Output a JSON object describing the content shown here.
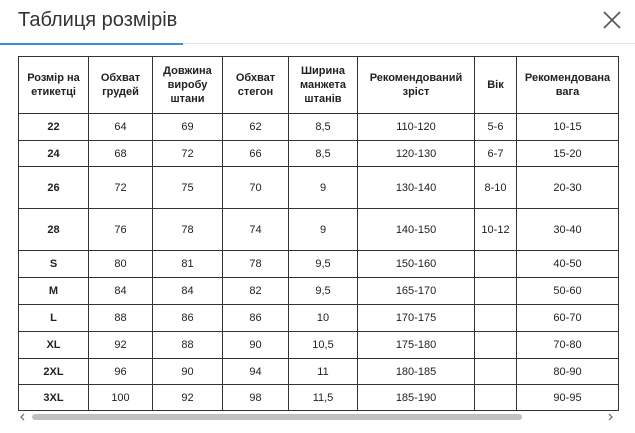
{
  "header": {
    "title": "Таблиця розмірів",
    "close": "×"
  },
  "table": {
    "headers": [
      "Розмір на етикетці",
      "Обхват грудей",
      "Довжина виробу штани",
      "Обхват стегон",
      "Ширина манжета штанів",
      "Рекомендований зріст",
      "Вік",
      "Рекомендована вага"
    ],
    "rows": [
      [
        "22",
        "64",
        "69",
        "62",
        "8,5",
        "110-120",
        "5-6",
        "10-15"
      ],
      [
        "24",
        "68",
        "72",
        "66",
        "8,5",
        "120-130",
        "6-7",
        "15-20"
      ],
      [
        "26",
        "72",
        "75",
        "70",
        "9",
        "130-140",
        "8-10",
        "20-30"
      ],
      [
        "28",
        "76",
        "78",
        "74",
        "9",
        "140-150",
        "10-12",
        "30-40"
      ],
      [
        "S",
        "80",
        "81",
        "78",
        "9,5",
        "150-160",
        null,
        "40-50"
      ],
      [
        "M",
        "84",
        "84",
        "82",
        "9,5",
        "165-170",
        null,
        "50-60"
      ],
      [
        "L",
        "88",
        "86",
        "86",
        "10",
        "170-175",
        null,
        "60-70"
      ],
      [
        "XL",
        "92",
        "88",
        "90",
        "10,5",
        "175-180",
        null,
        "70-80"
      ],
      [
        "2XL",
        "96",
        "90",
        "94",
        "11",
        "180-185",
        null,
        "80-90"
      ],
      [
        "3XL",
        "100",
        "92",
        "98",
        "11,5",
        "185-190",
        null,
        "90-95"
      ]
    ]
  }
}
